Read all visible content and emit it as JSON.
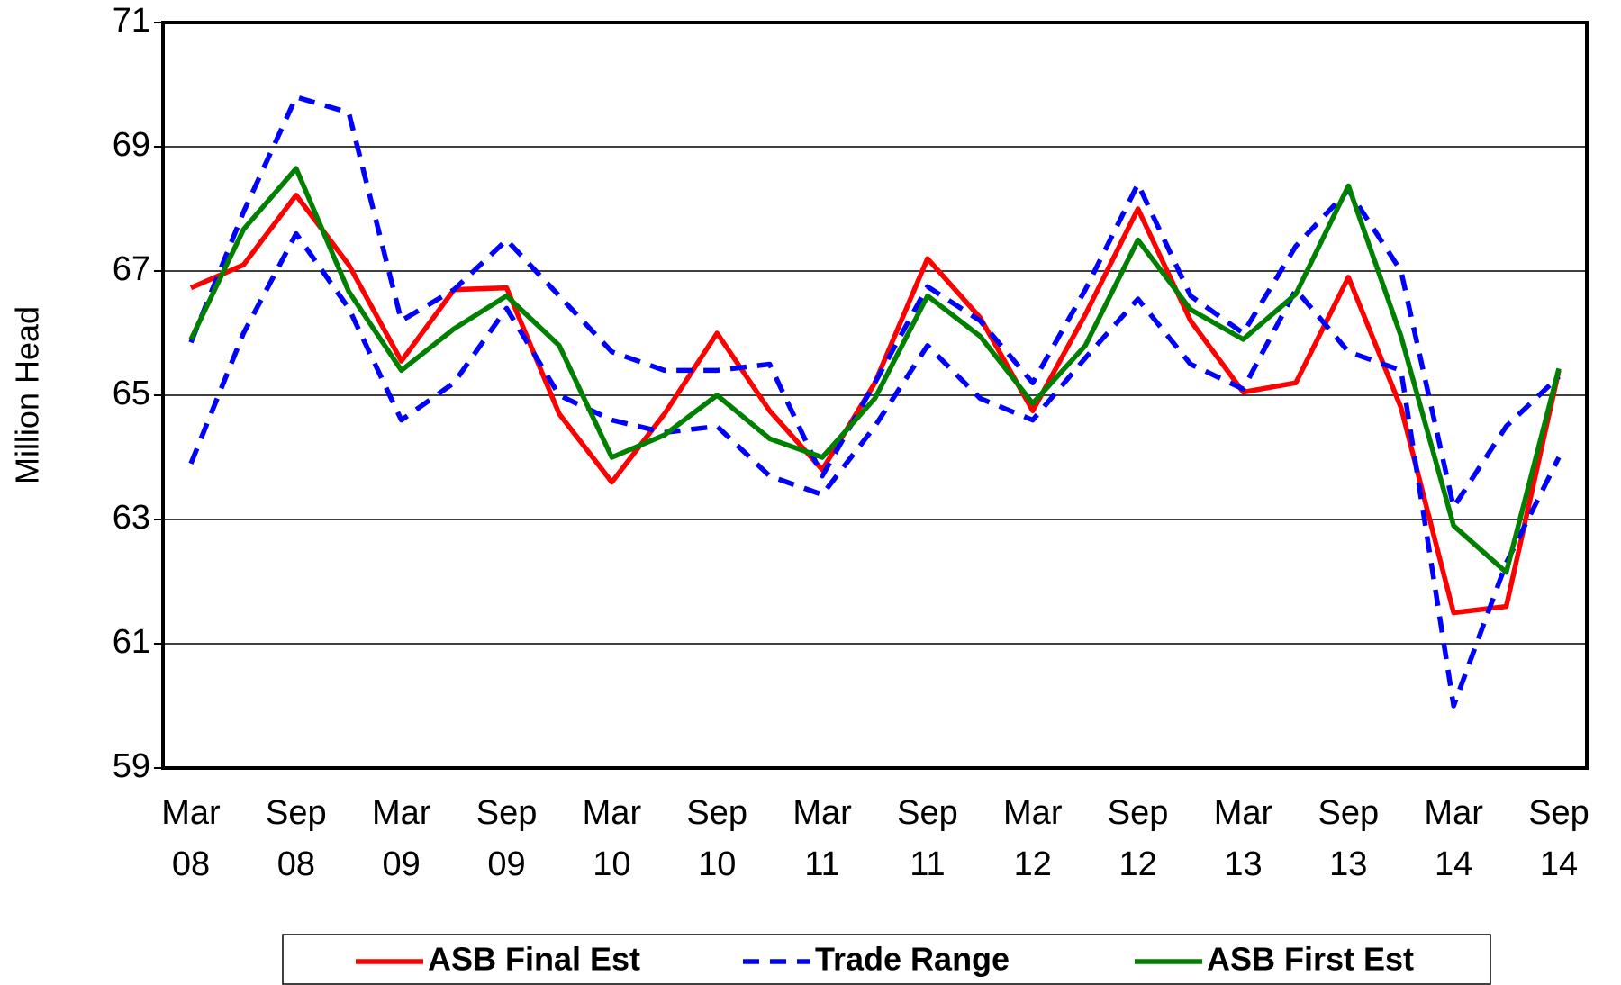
{
  "chart_data": {
    "type": "line",
    "y_label": "Million Head",
    "categories": [
      "Mar 08",
      null,
      "Sep 08",
      null,
      "Mar 09",
      null,
      "Sep 09",
      null,
      "Mar 10",
      null,
      "Sep 10",
      null,
      "Mar 11",
      null,
      "Sep 11",
      null,
      "Mar 12",
      null,
      "Sep 12",
      null,
      "Mar 13",
      null,
      "Sep 13",
      null,
      "Mar 14",
      null,
      "Sep 14"
    ],
    "ylim": [
      59,
      71
    ],
    "yticks": [
      59,
      61,
      63,
      65,
      67,
      69,
      71
    ],
    "grid": true,
    "legend": "bottom",
    "series": [
      {
        "name": "ASB Final Est",
        "color": "#ff0000",
        "values": [
          66.73,
          67.1,
          68.22,
          67.1,
          65.55,
          66.7,
          66.73,
          64.7,
          63.6,
          64.7,
          66.0,
          64.75,
          63.8,
          65.2,
          67.2,
          66.25,
          64.75,
          66.3,
          68.0,
          66.2,
          65.05,
          65.2,
          66.9,
          64.8,
          61.5,
          61.6,
          65.4
        ]
      },
      {
        "name": "Trade Range",
        "color": "#0000ff",
        "dashed": true,
        "high": [
          65.85,
          67.95,
          69.8,
          69.55,
          66.2,
          66.7,
          67.5,
          66.6,
          65.7,
          65.4,
          65.4,
          65.5,
          63.7,
          65.2,
          66.75,
          66.2,
          65.2,
          66.7,
          68.4,
          66.6,
          66.0,
          67.4,
          68.3,
          67.0,
          63.2,
          64.5,
          65.3
        ],
        "low": [
          63.9,
          66.0,
          67.6,
          66.4,
          64.6,
          65.2,
          66.4,
          65.0,
          64.6,
          64.4,
          64.5,
          63.7,
          63.4,
          64.5,
          65.8,
          64.95,
          64.6,
          65.6,
          66.55,
          65.5,
          65.1,
          66.7,
          65.7,
          65.4,
          60.0,
          62.3,
          64.0
        ]
      },
      {
        "name": "ASB First Est",
        "color": "#008000",
        "values": [
          65.9,
          67.67,
          68.65,
          66.67,
          65.4,
          66.07,
          66.6,
          65.8,
          64.0,
          64.36,
          65.0,
          64.3,
          64.0,
          64.95,
          66.6,
          65.95,
          64.87,
          65.8,
          67.5,
          66.38,
          65.9,
          66.63,
          68.37,
          65.95,
          62.9,
          62.15,
          65.43
        ]
      }
    ]
  }
}
